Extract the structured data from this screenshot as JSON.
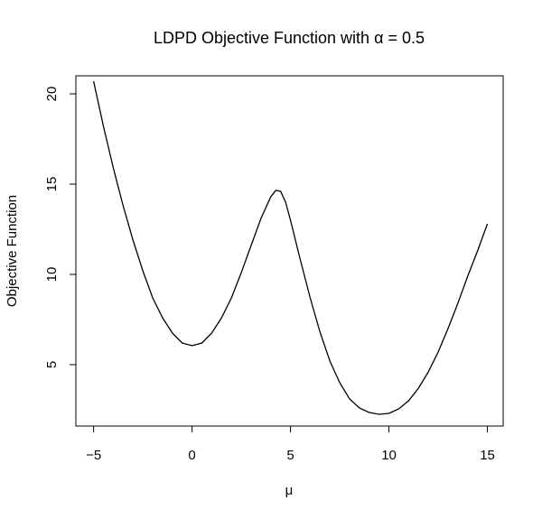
{
  "chart_data": {
    "type": "line",
    "title": "LDPD Objective Function with α = 0.5",
    "xlabel": "μ",
    "ylabel": "Objective Function",
    "xlim": [
      -5.9,
      15.8
    ],
    "ylim": [
      1.6,
      21.0
    ],
    "grid": false,
    "x_ticks": [
      -5,
      0,
      5,
      10,
      15
    ],
    "x_tick_labels": [
      "−5",
      "0",
      "5",
      "10",
      "15"
    ],
    "y_ticks": [
      5,
      10,
      15,
      20
    ],
    "y_tick_labels": [
      "5",
      "10",
      "15",
      "20"
    ],
    "series": [
      {
        "color": "#000000",
        "x": [
          -5,
          -4.5,
          -4,
          -3.5,
          -3,
          -2.5,
          -2,
          -1.5,
          -1,
          -0.5,
          0,
          0.5,
          1,
          1.5,
          2,
          2.5,
          3,
          3.5,
          4,
          4.25,
          4.5,
          4.75,
          5,
          5.5,
          6,
          6.5,
          7,
          7.5,
          8,
          8.5,
          9,
          9.5,
          10,
          10.5,
          11,
          11.5,
          12,
          12.5,
          13,
          13.5,
          14,
          14.5,
          15
        ],
        "y": [
          20.7,
          18.2,
          15.9,
          13.8,
          11.9,
          10.2,
          8.7,
          7.6,
          6.75,
          6.2,
          6.05,
          6.2,
          6.75,
          7.6,
          8.7,
          10.1,
          11.6,
          13.1,
          14.3,
          14.65,
          14.6,
          14.0,
          13.0,
          10.8,
          8.7,
          6.8,
          5.2,
          4.0,
          3.1,
          2.6,
          2.35,
          2.25,
          2.3,
          2.55,
          3.0,
          3.7,
          4.6,
          5.7,
          7.0,
          8.4,
          9.9,
          11.3,
          12.8
        ]
      }
    ]
  }
}
